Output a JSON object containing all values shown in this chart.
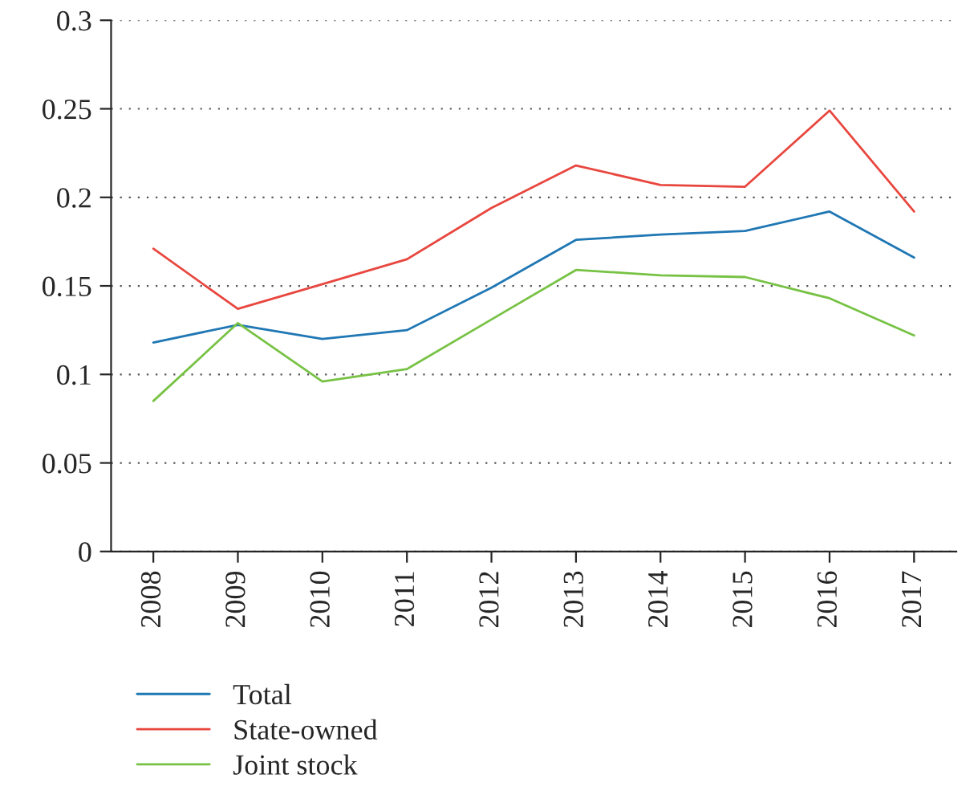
{
  "chart_data": {
    "type": "line",
    "categories": [
      "2008",
      "2009",
      "2010",
      "2011",
      "2012",
      "2013",
      "2014",
      "2015",
      "2016",
      "2017"
    ],
    "series": [
      {
        "name": "Total",
        "color": "#1f77b4",
        "values": [
          0.118,
          0.128,
          0.12,
          0.125,
          0.149,
          0.176,
          0.179,
          0.181,
          0.192,
          0.166
        ]
      },
      {
        "name": "State-owned",
        "color": "#e8473f",
        "values": [
          0.171,
          0.137,
          0.151,
          0.165,
          0.194,
          0.218,
          0.207,
          0.206,
          0.249,
          0.192
        ]
      },
      {
        "name": "Joint stock",
        "color": "#77c244",
        "values": [
          0.085,
          0.129,
          0.096,
          0.103,
          0.131,
          0.159,
          0.156,
          0.155,
          0.143,
          0.122
        ]
      }
    ],
    "ylim": [
      0,
      0.3
    ],
    "yticks": [
      0,
      0.05,
      0.1,
      0.15,
      0.2,
      0.25,
      0.3
    ],
    "grid": "y",
    "legend": "bottom",
    "marker": "none",
    "line_style": "solid"
  }
}
